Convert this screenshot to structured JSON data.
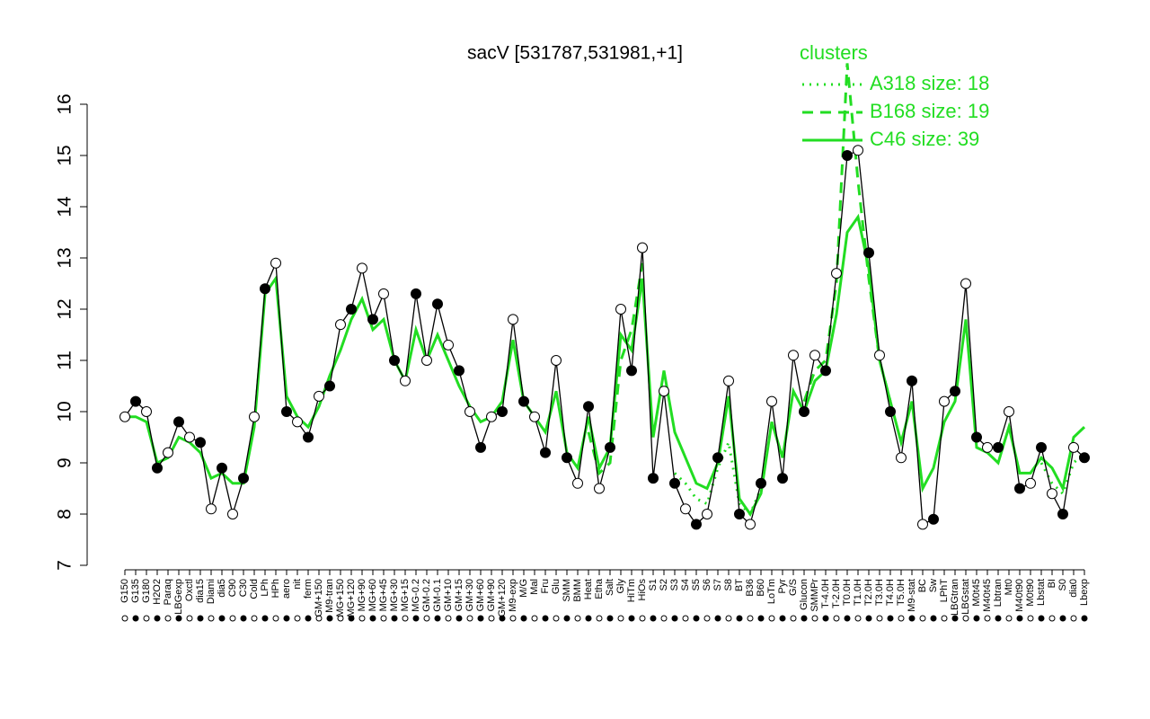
{
  "chart_data": {
    "type": "line",
    "title": "sacV [531787,531981,+1]",
    "legend_title": "clusters",
    "legend_position": "top-right",
    "ylim": [
      7,
      16
    ],
    "yticks": [
      7,
      8,
      9,
      10,
      11,
      12,
      13,
      14,
      15,
      16
    ],
    "categories": [
      "G150",
      "G135",
      "G180",
      "H2O2",
      "Paraq",
      "LBGexp",
      "Oxctl",
      "dia15",
      "Diami",
      "dia5",
      "C90",
      "C30",
      "Cold",
      "LPh",
      "HPh",
      "aero",
      "nit",
      "ferm",
      "GM+150",
      "M9-tran",
      "MG+150",
      "MG+120",
      "MG+90",
      "MG+60",
      "MG+45",
      "MG+30",
      "MG+15",
      "MG-0.2",
      "GM-0.2",
      "GM-0.1",
      "GM+10",
      "GM+15",
      "GM+30",
      "GM+60",
      "GM+90",
      "GM+120",
      "M9-exp",
      "M/G",
      "Mal",
      "Fru",
      "Glu",
      "SMM",
      "BMM",
      "Heat",
      "Etha",
      "Salt",
      "Gly",
      "HiTm",
      "HiOs",
      "S1",
      "S2",
      "S3",
      "S4",
      "S5",
      "S6",
      "S7",
      "S8",
      "BT",
      "B36",
      "B60",
      "LoTm",
      "Pyr",
      "G/S",
      "Glucon",
      "SMMPr",
      "T-4.0H",
      "T-2.0H",
      "T0.0H",
      "T1.0H",
      "T2.0H",
      "T3.0H",
      "T4.0H",
      "T5.0H",
      "M9-stat",
      "BC",
      "Sw",
      "LPhT",
      "LBGtran",
      "LBGstat",
      "M0t45",
      "M40t45",
      "Lbtran",
      "Mt0",
      "M40t90",
      "M0t90",
      "Lbstat",
      "BI",
      "S0",
      "dia0",
      "Lbexp"
    ],
    "values": [
      9.9,
      10.2,
      10.0,
      8.9,
      9.2,
      9.8,
      9.5,
      9.4,
      8.1,
      8.9,
      8.0,
      8.7,
      9.9,
      12.4,
      12.9,
      10.0,
      9.8,
      9.5,
      10.3,
      10.5,
      11.7,
      12.0,
      12.8,
      11.8,
      12.3,
      11.0,
      10.6,
      12.3,
      11.0,
      12.1,
      11.3,
      10.8,
      10.0,
      9.3,
      9.9,
      10.0,
      11.8,
      10.2,
      9.9,
      9.2,
      11.0,
      9.1,
      8.6,
      10.1,
      8.5,
      9.3,
      12.0,
      10.8,
      13.2,
      8.7,
      10.4,
      8.6,
      8.1,
      7.8,
      8.0,
      9.1,
      10.6,
      8.0,
      7.8,
      8.6,
      10.2,
      8.7,
      11.1,
      10.0,
      11.1,
      10.8,
      12.7,
      15.0,
      15.1,
      13.1,
      11.1,
      10.0,
      9.1,
      10.6,
      7.8,
      7.9,
      10.2,
      10.4,
      12.5,
      9.5,
      9.3,
      9.3,
      10.0,
      8.5,
      8.6,
      9.3,
      8.4,
      8.0,
      9.3,
      9.1
    ],
    "color": "#000000",
    "series": [
      {
        "name": "A318 size: 18",
        "color": "#22dd22",
        "dash": "dotted",
        "values": [
          null,
          null,
          null,
          null,
          null,
          null,
          null,
          null,
          null,
          null,
          null,
          null,
          null,
          null,
          null,
          null,
          null,
          null,
          null,
          null,
          null,
          null,
          null,
          null,
          null,
          null,
          null,
          null,
          null,
          null,
          null,
          null,
          null,
          null,
          null,
          null,
          null,
          null,
          null,
          null,
          null,
          null,
          null,
          null,
          null,
          null,
          null,
          null,
          null,
          null,
          null,
          8.8,
          8.6,
          8.3,
          8.2,
          8.9,
          9.4,
          8.2,
          8.0,
          8.5,
          null,
          null,
          null,
          null,
          null,
          null,
          null,
          null,
          null,
          null,
          null,
          null,
          null,
          null,
          null,
          null,
          null,
          null,
          null,
          null,
          null,
          null,
          null,
          null,
          null,
          9.0,
          8.6,
          8.4,
          9.0,
          9.2
        ]
      },
      {
        "name": "B168 size: 19",
        "color": "#22dd22",
        "dash": "dashed",
        "values": [
          null,
          null,
          null,
          null,
          null,
          null,
          null,
          null,
          null,
          null,
          null,
          null,
          null,
          null,
          null,
          null,
          null,
          null,
          null,
          null,
          null,
          null,
          null,
          null,
          null,
          null,
          null,
          null,
          null,
          null,
          null,
          null,
          null,
          null,
          null,
          null,
          null,
          null,
          null,
          null,
          null,
          null,
          null,
          9.6,
          8.8,
          9.0,
          11.0,
          11.6,
          12.9,
          null,
          null,
          null,
          null,
          null,
          null,
          null,
          null,
          null,
          null,
          null,
          null,
          null,
          null,
          10.2,
          10.8,
          11.0,
          12.5,
          16.8,
          14.5,
          12.6,
          11.0,
          10.2,
          null,
          null,
          null,
          null,
          null,
          null,
          null,
          null,
          null,
          null,
          null,
          null,
          null,
          null,
          null,
          null,
          null,
          null
        ]
      },
      {
        "name": "C46 size: 39",
        "color": "#22dd22",
        "dash": "solid",
        "values": [
          9.9,
          9.9,
          9.8,
          9.0,
          9.1,
          9.5,
          9.4,
          9.2,
          8.7,
          8.8,
          8.6,
          8.6,
          9.7,
          12.3,
          12.6,
          10.3,
          9.9,
          9.7,
          10.1,
          10.7,
          11.2,
          11.8,
          12.2,
          11.6,
          11.8,
          11.0,
          10.6,
          11.6,
          11.0,
          11.5,
          11.0,
          10.5,
          10.1,
          9.8,
          9.9,
          10.2,
          11.4,
          10.2,
          9.9,
          9.6,
          10.4,
          9.2,
          8.9,
          9.9,
          8.9,
          9.3,
          11.5,
          11.2,
          12.6,
          9.5,
          10.8,
          9.6,
          9.1,
          8.6,
          8.5,
          9.0,
          10.3,
          8.3,
          8.0,
          8.4,
          9.8,
          9.1,
          10.4,
          10.0,
          10.6,
          10.8,
          11.9,
          13.5,
          13.8,
          12.8,
          11.0,
          10.2,
          9.4,
          10.2,
          8.5,
          8.9,
          9.8,
          10.2,
          11.8,
          9.3,
          9.2,
          9.0,
          9.7,
          8.8,
          8.8,
          9.1,
          8.9,
          8.5,
          9.5,
          9.7
        ]
      }
    ]
  }
}
